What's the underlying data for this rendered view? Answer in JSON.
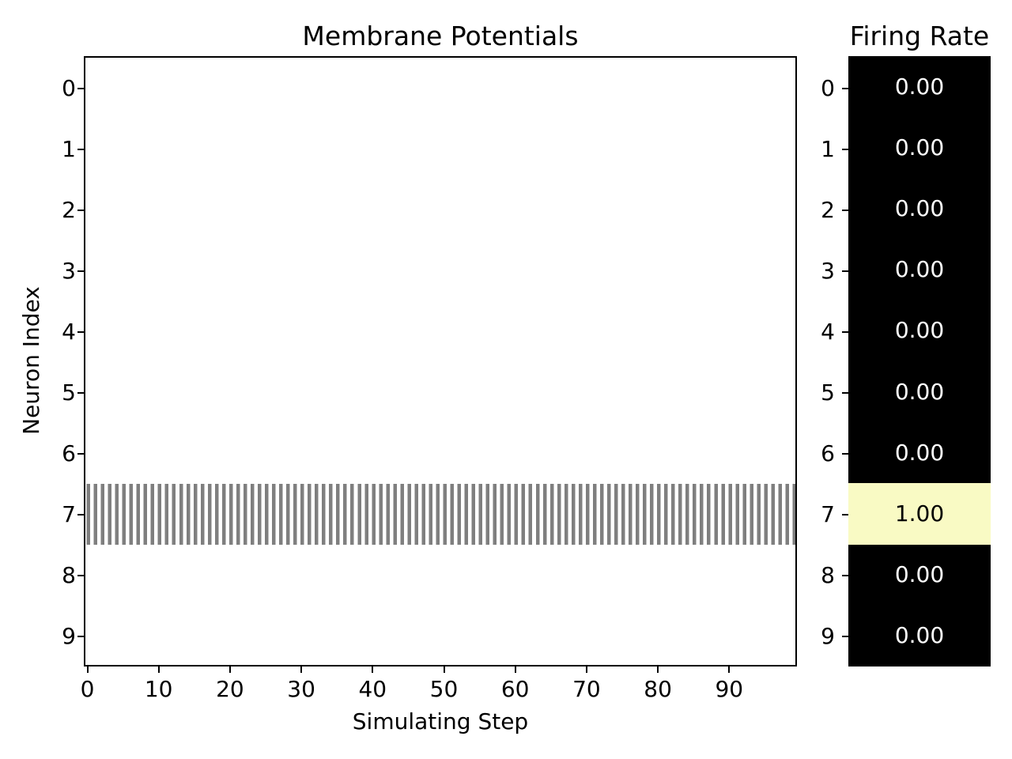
{
  "figure": {
    "background": "#ffffff"
  },
  "membrane_plot": {
    "title": "Membrane Potentials",
    "xlabel": "Simulating Step",
    "ylabel": "Neuron Index",
    "x_tick_labels": [
      "0",
      "10",
      "20",
      "30",
      "40",
      "50",
      "60",
      "70",
      "80",
      "90"
    ],
    "y_tick_labels": [
      "0",
      "1",
      "2",
      "3",
      "4",
      "5",
      "6",
      "7",
      "8",
      "9"
    ],
    "active_neuron": 7,
    "stripe_color": "#7f7f7f",
    "plot_background": "#ffffff",
    "spine_color": "#000000"
  },
  "firing_rate_panel": {
    "title": "Firing Rate",
    "y_tick_labels": [
      "0",
      "1",
      "2",
      "3",
      "4",
      "5",
      "6",
      "7",
      "8",
      "9"
    ],
    "rows": [
      {
        "neuron": "0",
        "label": "0.00",
        "bg": "#000000",
        "text": "#ffffff"
      },
      {
        "neuron": "1",
        "label": "0.00",
        "bg": "#000000",
        "text": "#ffffff"
      },
      {
        "neuron": "2",
        "label": "0.00",
        "bg": "#000000",
        "text": "#ffffff"
      },
      {
        "neuron": "3",
        "label": "0.00",
        "bg": "#000000",
        "text": "#ffffff"
      },
      {
        "neuron": "4",
        "label": "0.00",
        "bg": "#000000",
        "text": "#ffffff"
      },
      {
        "neuron": "5",
        "label": "0.00",
        "bg": "#000000",
        "text": "#ffffff"
      },
      {
        "neuron": "6",
        "label": "0.00",
        "bg": "#000000",
        "text": "#ffffff"
      },
      {
        "neuron": "7",
        "label": "1.00",
        "bg": "#f9fac4",
        "text": "#000000"
      },
      {
        "neuron": "8",
        "label": "0.00",
        "bg": "#000000",
        "text": "#ffffff"
      },
      {
        "neuron": "9",
        "label": "0.00",
        "bg": "#000000",
        "text": "#ffffff"
      }
    ]
  },
  "chart_data": [
    {
      "type": "heatmap",
      "title": "Membrane Potentials",
      "xlabel": "Simulating Step",
      "ylabel": "Neuron Index",
      "x_ticks": [
        0,
        10,
        20,
        30,
        40,
        50,
        60,
        70,
        80,
        90
      ],
      "x_range": [
        -0.5,
        99.5
      ],
      "y_categories": [
        0,
        1,
        2,
        3,
        4,
        5,
        6,
        7,
        8,
        9
      ],
      "grid": false,
      "legend_position": "none",
      "colormap": "white (0) to gray (mid) scale",
      "active_neuron": 7,
      "pattern": "neurons 0-6 and 8-9 stay at 0 (white) for all 100 steps; neuron 7 alternates between ~0.5 (gray) and 0 (white) every step, drawing ~100 thin vertical gray stripes across the full row",
      "stripe_values": [
        0.5,
        0
      ]
    },
    {
      "type": "heatmap",
      "title": "Firing Rate",
      "categories": [
        0,
        1,
        2,
        3,
        4,
        5,
        6,
        7,
        8,
        9
      ],
      "values": [
        0,
        0,
        0,
        0,
        0,
        0,
        0,
        1,
        0,
        0
      ],
      "value_labels": [
        "0.00",
        "0.00",
        "0.00",
        "0.00",
        "0.00",
        "0.00",
        "0.00",
        "1.00",
        "0.00",
        "0.00"
      ],
      "grid": false,
      "legend_position": "none",
      "colormap": "black (0.00) to pale yellow (1.00)"
    }
  ]
}
